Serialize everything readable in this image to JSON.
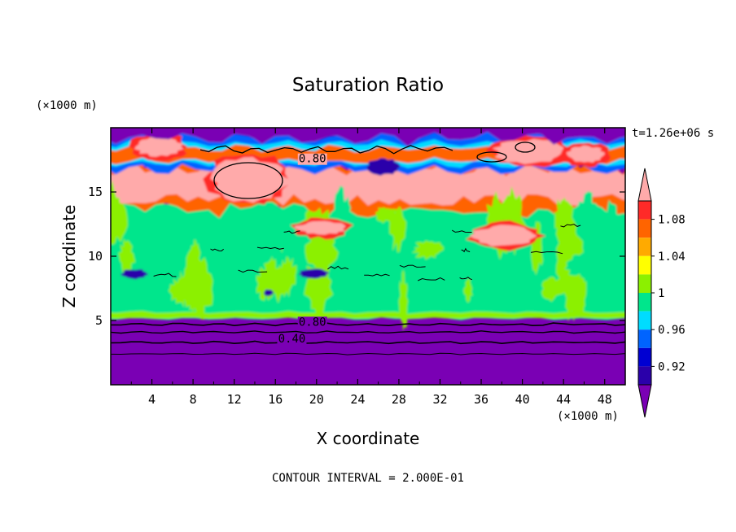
{
  "chart_data": {
    "type": "contour",
    "title": "Saturation Ratio",
    "xlabel": "X coordinate",
    "ylabel": "Z coordinate",
    "x_unit": "(×1000 m)",
    "y_unit": "(×1000 m)",
    "time_label": "t=1.26e+06 s",
    "footer": "CONTOUR INTERVAL = 2.000E-01",
    "xlim": [
      0,
      50
    ],
    "ylim": [
      0,
      20
    ],
    "x_ticks": [
      "4",
      "8",
      "12",
      "16",
      "20",
      "24",
      "28",
      "32",
      "36",
      "40",
      "44",
      "48"
    ],
    "y_ticks": [
      "5",
      "10",
      "15"
    ],
    "x_tick_values": [
      4,
      8,
      12,
      16,
      20,
      24,
      28,
      32,
      36,
      40,
      44,
      48
    ],
    "y_tick_values": [
      5,
      10,
      15
    ],
    "colorbar": {
      "labels": [
        "1.08",
        "1.04",
        "1",
        "0.96",
        "0.92"
      ],
      "label_values": [
        1.08,
        1.04,
        1.0,
        0.96,
        0.92
      ],
      "levels": [
        0.9,
        0.92,
        0.94,
        0.96,
        0.98,
        1.0,
        1.02,
        1.04,
        1.06,
        1.08,
        1.1
      ],
      "colors": [
        "#7a00b4",
        "#2a00aa",
        "#0000d2",
        "#0064ff",
        "#00dcff",
        "#00e68c",
        "#8cf000",
        "#ffff00",
        "#ffaa00",
        "#ff6400",
        "#ff2a28",
        "#ffaaaa"
      ]
    },
    "contour_labels": [
      {
        "text": "0.80",
        "x": 19.6,
        "y": 17.3
      },
      {
        "text": "0.80",
        "x": 19.6,
        "y": 4.6
      },
      {
        "text": "0.40",
        "x": 17.6,
        "y": 3.3
      }
    ],
    "regions": [
      {
        "level": 0.8,
        "z_min": 0,
        "z_max": 5.0,
        "value": "below 0.90"
      },
      {
        "level": 1.0,
        "z_min": 5.0,
        "z_max": 14.0,
        "value": "about 1.00"
      },
      {
        "level": 1.1,
        "z_min": 15.0,
        "z_max": 17.5,
        "value": "above 1.10"
      },
      {
        "level": 0.8,
        "z_min": 18.0,
        "z_max": 20.0,
        "value": "below 0.90"
      }
    ]
  }
}
